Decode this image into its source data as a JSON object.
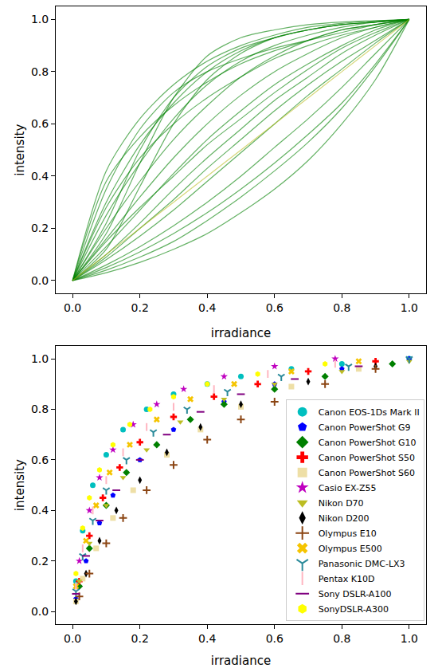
{
  "chart_data": [
    {
      "type": "line",
      "x_label": "irradiance",
      "y_label": "intensity",
      "xlim": [
        -0.05,
        1.05
      ],
      "ylim": [
        -0.05,
        1.05
      ],
      "xticks": [
        {
          "value": 0,
          "label": "0.0"
        },
        0.2,
        0.4,
        0.6,
        0.8,
        {
          "value": 1,
          "label": "1.0"
        }
      ],
      "yticks": [
        {
          "value": 0,
          "label": "0.0"
        },
        0.2,
        0.4,
        0.6,
        0.8,
        {
          "value": 1,
          "label": "1.0"
        }
      ],
      "grid": false,
      "x": [
        0,
        0.1,
        0.2,
        0.3,
        0.4,
        0.5,
        0.6,
        0.7,
        0.8,
        0.9,
        1.0
      ],
      "series": [
        {
          "color": "#008000",
          "values": [
            0,
            0.42,
            0.62,
            0.75,
            0.84,
            0.9,
            0.94,
            0.97,
            0.985,
            0.995,
            1
          ]
        },
        {
          "color": "#008000",
          "values": [
            0,
            0.3,
            0.52,
            0.68,
            0.8,
            0.88,
            0.93,
            0.96,
            0.98,
            0.99,
            1
          ]
        },
        {
          "color": "#008000",
          "values": [
            0,
            0.25,
            0.45,
            0.62,
            0.75,
            0.84,
            0.9,
            0.94,
            0.97,
            0.99,
            1
          ]
        },
        {
          "color": "#008000",
          "values": [
            0,
            0.2,
            0.38,
            0.54,
            0.67,
            0.78,
            0.86,
            0.92,
            0.96,
            0.98,
            1
          ]
        },
        {
          "color": "#008000",
          "values": [
            0,
            0.16,
            0.32,
            0.47,
            0.6,
            0.71,
            0.8,
            0.87,
            0.93,
            0.97,
            1
          ]
        },
        {
          "color": "#008000",
          "values": [
            0,
            0.13,
            0.27,
            0.41,
            0.54,
            0.65,
            0.75,
            0.83,
            0.9,
            0.96,
            1
          ]
        },
        {
          "color": "#008000",
          "values": [
            0,
            0.1,
            0.22,
            0.35,
            0.47,
            0.58,
            0.69,
            0.78,
            0.87,
            0.94,
            1
          ]
        },
        {
          "color": "#008000",
          "values": [
            0,
            0.08,
            0.17,
            0.27,
            0.38,
            0.49,
            0.6,
            0.71,
            0.81,
            0.91,
            1
          ]
        },
        {
          "color": "#008000",
          "values": [
            0,
            0.06,
            0.13,
            0.21,
            0.3,
            0.4,
            0.51,
            0.62,
            0.74,
            0.87,
            1
          ]
        },
        {
          "color": "#008000",
          "values": [
            0,
            0.04,
            0.09,
            0.15,
            0.23,
            0.32,
            0.42,
            0.53,
            0.66,
            0.82,
            1
          ]
        },
        {
          "color": "#008000",
          "values": [
            0,
            0.03,
            0.07,
            0.12,
            0.18,
            0.26,
            0.35,
            0.46,
            0.6,
            0.77,
            1
          ]
        },
        {
          "color": "#008000",
          "values": [
            0,
            0.18,
            0.45,
            0.7,
            0.86,
            0.93,
            0.96,
            0.98,
            0.99,
            0.995,
            1
          ]
        },
        {
          "color": "#008000",
          "values": [
            0,
            0.12,
            0.36,
            0.6,
            0.77,
            0.87,
            0.93,
            0.96,
            0.98,
            0.99,
            1
          ]
        },
        {
          "color": "#008000",
          "values": [
            0,
            0.35,
            0.58,
            0.72,
            0.8,
            0.85,
            0.89,
            0.92,
            0.95,
            0.98,
            1
          ]
        },
        {
          "color": "#008000",
          "values": [
            0,
            0.22,
            0.5,
            0.7,
            0.82,
            0.89,
            0.93,
            0.96,
            0.98,
            0.99,
            1
          ]
        },
        {
          "color": "#008000",
          "values": [
            0,
            0.28,
            0.47,
            0.6,
            0.7,
            0.78,
            0.85,
            0.9,
            0.94,
            0.97,
            1
          ]
        },
        {
          "color": "#008000",
          "values": [
            0,
            0.15,
            0.28,
            0.4,
            0.52,
            0.62,
            0.72,
            0.81,
            0.89,
            0.95,
            1
          ]
        },
        {
          "color": "#008000",
          "values": [
            0,
            0.05,
            0.11,
            0.18,
            0.26,
            0.35,
            0.45,
            0.56,
            0.68,
            0.83,
            1
          ]
        },
        {
          "color": "#008000",
          "values": [
            0,
            0.38,
            0.55,
            0.67,
            0.76,
            0.83,
            0.88,
            0.92,
            0.96,
            0.98,
            1
          ]
        },
        {
          "color": "#008000",
          "values": [
            0,
            0.09,
            0.2,
            0.31,
            0.43,
            0.54,
            0.65,
            0.75,
            0.84,
            0.92,
            1
          ]
        },
        {
          "color": "#bcbd22",
          "values": [
            0,
            0.1,
            0.2,
            0.3,
            0.4,
            0.5,
            0.6,
            0.7,
            0.8,
            0.9,
            1.0
          ]
        }
      ]
    },
    {
      "type": "scatter",
      "x_label": "irradiance",
      "y_label": "intensity",
      "xlim": [
        -0.05,
        1.05
      ],
      "ylim": [
        -0.05,
        1.05
      ],
      "xticks": [
        {
          "value": 0,
          "label": "0.0"
        },
        0.2,
        0.4,
        0.6,
        0.8,
        {
          "value": 1,
          "label": "1.0"
        }
      ],
      "yticks": [
        {
          "value": 0,
          "label": "0.0"
        },
        0.2,
        0.4,
        0.6,
        0.8,
        {
          "value": 1,
          "label": "1.0"
        }
      ],
      "grid": false,
      "legend": "lower right",
      "series": [
        {
          "name": "Canon EOS-1Ds Mark II",
          "color": "#00bfbf",
          "marker": "circle",
          "x": [
            0.01,
            0.03,
            0.06,
            0.1,
            0.15,
            0.22,
            0.3,
            0.4,
            0.5,
            0.65,
            0.8,
            1.0
          ],
          "values": [
            0.12,
            0.32,
            0.5,
            0.62,
            0.72,
            0.8,
            0.86,
            0.9,
            0.93,
            0.96,
            0.98,
            1.0
          ]
        },
        {
          "name": "Canon PowerShot G9",
          "color": "#0000ff",
          "marker": "pentagon",
          "x": [
            0.01,
            0.04,
            0.08,
            0.12,
            0.2,
            0.3,
            0.45,
            0.6,
            0.8,
            1.0
          ],
          "values": [
            0.05,
            0.2,
            0.35,
            0.46,
            0.6,
            0.72,
            0.83,
            0.9,
            0.96,
            1.0
          ]
        },
        {
          "name": "Canon PowerShot G10",
          "color": "#008000",
          "marker": "diamond",
          "x": [
            0.02,
            0.05,
            0.1,
            0.16,
            0.25,
            0.35,
            0.45,
            0.6,
            0.75,
            0.95
          ],
          "values": [
            0.1,
            0.25,
            0.42,
            0.55,
            0.66,
            0.76,
            0.82,
            0.88,
            0.93,
            0.98
          ]
        },
        {
          "name": "Canon PowerShot S50",
          "color": "#ff0000",
          "marker": "cross",
          "x": [
            0.02,
            0.05,
            0.09,
            0.14,
            0.2,
            0.3,
            0.42,
            0.55,
            0.7,
            0.9
          ],
          "values": [
            0.12,
            0.3,
            0.45,
            0.57,
            0.67,
            0.77,
            0.85,
            0.9,
            0.95,
            0.99
          ]
        },
        {
          "name": "Canon PowerShot S60",
          "color": "#eedfa6",
          "marker": "square",
          "x": [
            0.01,
            0.03,
            0.07,
            0.12,
            0.18,
            0.28,
            0.38,
            0.5,
            0.65,
            0.85
          ],
          "values": [
            0.04,
            0.13,
            0.25,
            0.37,
            0.48,
            0.62,
            0.72,
            0.81,
            0.89,
            0.96
          ]
        },
        {
          "name": "Casio EX-Z55",
          "color": "#bf00bf",
          "marker": "star",
          "x": [
            0.02,
            0.05,
            0.08,
            0.12,
            0.18,
            0.25,
            0.33,
            0.45,
            0.6,
            0.78
          ],
          "values": [
            0.2,
            0.4,
            0.53,
            0.64,
            0.74,
            0.82,
            0.88,
            0.93,
            0.97,
            1.0
          ]
        },
        {
          "name": "Nikon D70",
          "color": "#bcbd22",
          "marker": "triangle-down",
          "x": [
            0.02,
            0.05,
            0.1,
            0.15,
            0.22,
            0.32,
            0.45,
            0.6,
            0.8,
            1.0
          ],
          "values": [
            0.12,
            0.27,
            0.42,
            0.53,
            0.64,
            0.75,
            0.84,
            0.9,
            0.95,
            0.99
          ]
        },
        {
          "name": "Nikon D200",
          "color": "#000000",
          "marker": "diamond-tall",
          "x": [
            0.01,
            0.04,
            0.08,
            0.13,
            0.2,
            0.28,
            0.38,
            0.5,
            0.7,
            0.9
          ],
          "values": [
            0.04,
            0.15,
            0.28,
            0.4,
            0.52,
            0.63,
            0.73,
            0.82,
            0.91,
            0.97
          ]
        },
        {
          "name": "Olympus E10",
          "color": "#8b4513",
          "marker": "cross-thin",
          "x": [
            0.02,
            0.05,
            0.1,
            0.15,
            0.22,
            0.3,
            0.4,
            0.5,
            0.6,
            0.75,
            0.9
          ],
          "values": [
            0.06,
            0.15,
            0.27,
            0.37,
            0.48,
            0.58,
            0.68,
            0.76,
            0.83,
            0.9,
            0.96
          ]
        },
        {
          "name": "Olympus E500",
          "color": "#f5c400",
          "marker": "x",
          "x": [
            0.01,
            0.04,
            0.07,
            0.11,
            0.17,
            0.25,
            0.35,
            0.48,
            0.65,
            0.85
          ],
          "values": [
            0.1,
            0.28,
            0.42,
            0.55,
            0.66,
            0.76,
            0.84,
            0.9,
            0.95,
            0.99
          ]
        },
        {
          "name": "Panasonic DMC-LX3",
          "color": "#2a8a9a",
          "marker": "y-down",
          "x": [
            0.01,
            0.03,
            0.06,
            0.1,
            0.16,
            0.24,
            0.34,
            0.46,
            0.62,
            0.82,
            1.0
          ],
          "values": [
            0.08,
            0.22,
            0.36,
            0.48,
            0.6,
            0.71,
            0.8,
            0.87,
            0.93,
            0.97,
            1.0
          ]
        },
        {
          "name": "Pentax K10D",
          "color": "#ffb6c1",
          "marker": "line-ns",
          "x": [
            0.01,
            0.03,
            0.06,
            0.1,
            0.15,
            0.22,
            0.3,
            0.42,
            0.58,
            0.78
          ],
          "values": [
            0.1,
            0.25,
            0.4,
            0.52,
            0.63,
            0.73,
            0.81,
            0.88,
            0.94,
            0.98
          ]
        },
        {
          "name": "Sony DSLR-A100",
          "color": "#800080",
          "marker": "line-ew",
          "x": [
            0.01,
            0.04,
            0.08,
            0.13,
            0.2,
            0.28,
            0.38,
            0.5,
            0.66,
            0.85
          ],
          "values": [
            0.07,
            0.22,
            0.36,
            0.48,
            0.6,
            0.7,
            0.79,
            0.86,
            0.92,
            0.97
          ]
        },
        {
          "name": "SonyDSLR-A300",
          "color": "#ffff00",
          "marker": "hexagon",
          "x": [
            0.01,
            0.03,
            0.05,
            0.08,
            0.12,
            0.17,
            0.23,
            0.3,
            0.4,
            0.55,
            0.75
          ],
          "values": [
            0.15,
            0.33,
            0.45,
            0.56,
            0.66,
            0.74,
            0.8,
            0.85,
            0.9,
            0.94,
            0.98
          ]
        }
      ]
    }
  ]
}
